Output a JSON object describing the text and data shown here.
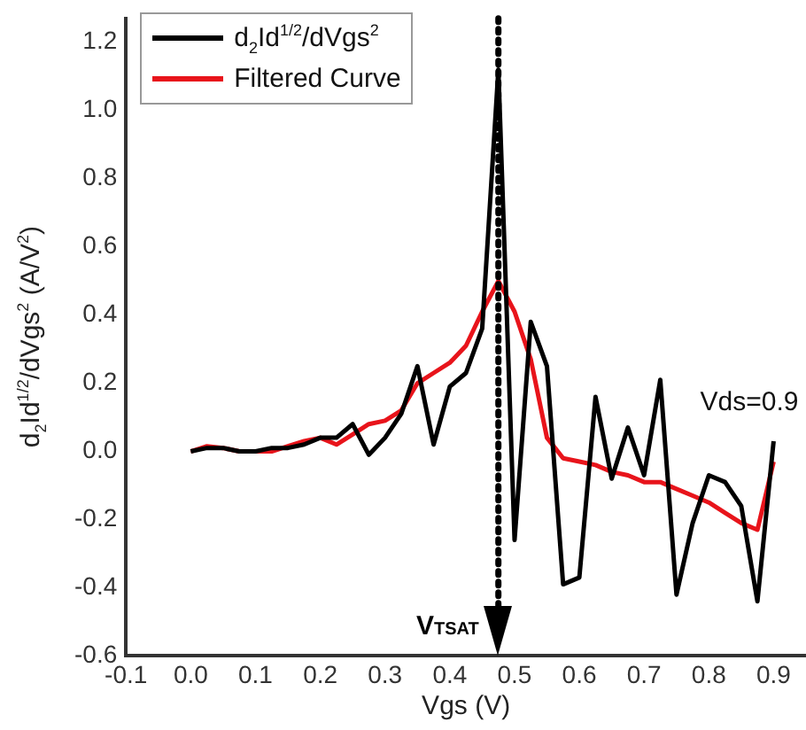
{
  "chart_data": {
    "type": "line",
    "xlabel": "Vgs (V)",
    "ylabel": "d$_{2}$Id$^{1/2}$/dVgs$^{2}$ (A/V$^{2}$)",
    "x": [
      0,
      0.025,
      0.05,
      0.075,
      0.1,
      0.125,
      0.15,
      0.175,
      0.2,
      0.225,
      0.25,
      0.275,
      0.3,
      0.325,
      0.35,
      0.375,
      0.4,
      0.425,
      0.45,
      0.475,
      0.5,
      0.525,
      0.55,
      0.575,
      0.6,
      0.625,
      0.65,
      0.675,
      0.7,
      0.725,
      0.75,
      0.775,
      0.8,
      0.825,
      0.85,
      0.875,
      0.9
    ],
    "series": [
      {
        "name": "d$_{2}$Id$^{1/2}$/dVgs$^{2}$",
        "color": "#000000",
        "values": [
          0,
          0.01,
          0.01,
          0,
          0,
          0.01,
          0.01,
          0.02,
          0.04,
          0.04,
          0.08,
          -0.01,
          0.04,
          0.11,
          0.25,
          0.02,
          0.19,
          0.23,
          0.36,
          1.12,
          -0.26,
          0.38,
          0.25,
          -0.39,
          -0.37,
          0.16,
          -0.08,
          0.07,
          -0.07,
          0.21,
          -0.42,
          -0.21,
          -0.07,
          -0.09,
          -0.16,
          -0.44,
          0.03
        ]
      },
      {
        "name": "Filtered Curve",
        "color": "#e8141b",
        "values": [
          0,
          0.015,
          0.01,
          0,
          0,
          0,
          0.015,
          0.03,
          0.04,
          0.02,
          0.05,
          0.08,
          0.09,
          0.12,
          0.2,
          0.23,
          0.26,
          0.31,
          0.41,
          0.5,
          0.41,
          0.27,
          0.04,
          -0.02,
          -0.03,
          -0.04,
          -0.06,
          -0.07,
          -0.09,
          -0.09,
          -0.11,
          -0.13,
          -0.15,
          -0.18,
          -0.21,
          -0.23,
          -0.03
        ]
      }
    ],
    "xlim": [
      -0.1,
      0.95
    ],
    "xticks": [
      -0.1,
      {
        "value": 0,
        "label": "0.0"
      },
      0.1,
      0.2,
      0.3,
      0.4,
      0.5,
      0.6,
      0.7,
      0.8,
      0.9
    ],
    "ylim": [
      -0.6,
      1.27
    ],
    "yticks": [
      -0.6,
      -0.4,
      -0.2,
      {
        "value": 0,
        "label": "0.0"
      },
      0.2,
      0.4,
      0.6,
      0.8,
      {
        "value": 1,
        "label": "1.0"
      },
      1.2
    ],
    "ref_lines": [
      {
        "axis": "x",
        "value": 0.475,
        "label": "V$_{TSAT}$",
        "line_style": "dotted"
      }
    ],
    "annotations": [
      {
        "text": "Vds=0.9",
        "x": 0.9,
        "y": 0.03
      }
    ],
    "legend": "top left",
    "grid": false,
    "marker": "none",
    "line_style": "solid"
  }
}
